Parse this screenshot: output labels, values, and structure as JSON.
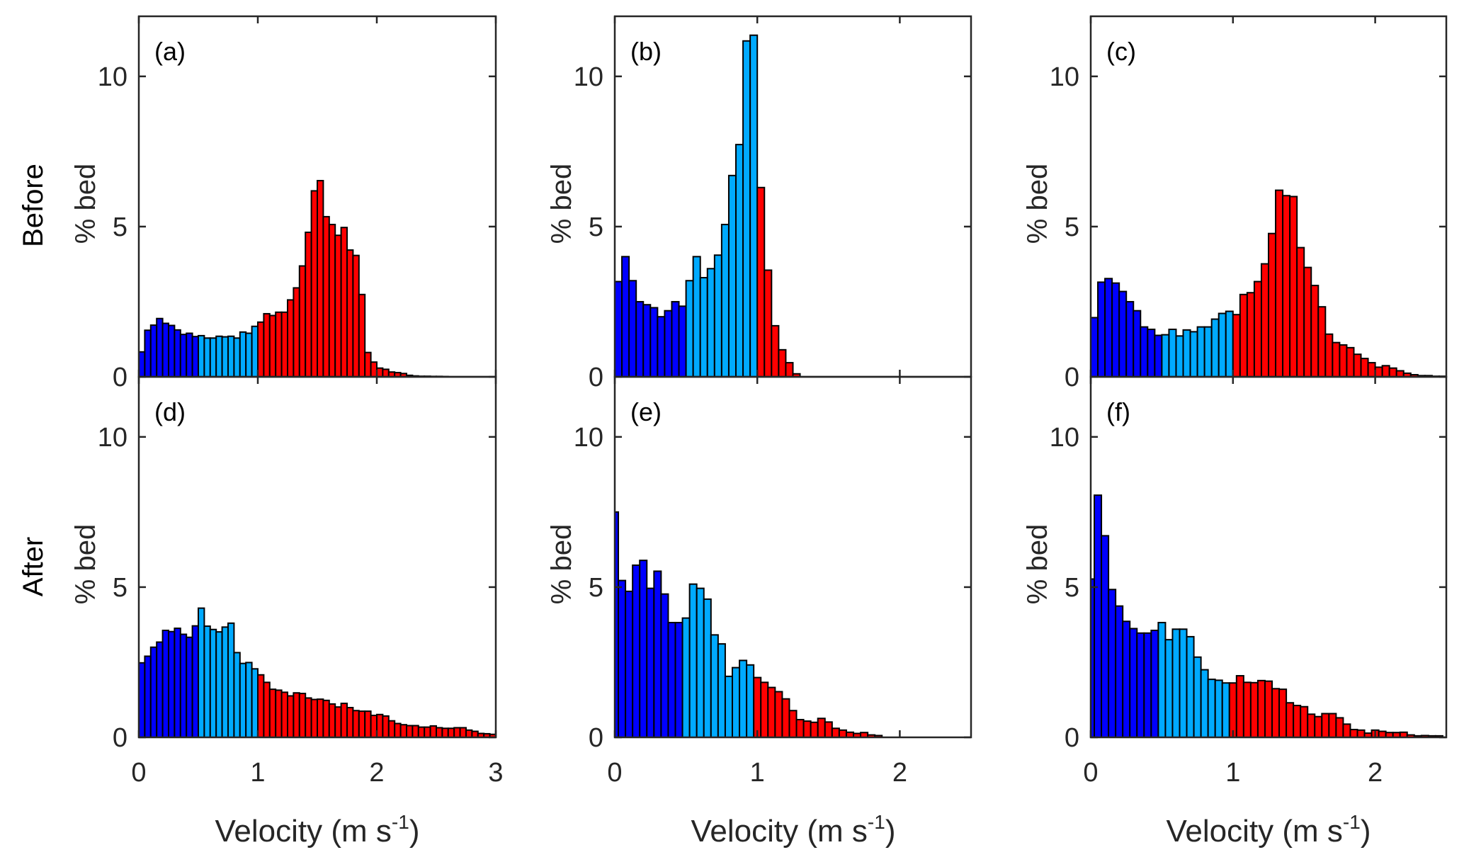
{
  "chart_data": {
    "type": "bar",
    "title": "",
    "row_labels": [
      "Before",
      "After"
    ],
    "class_colors": {
      "slow": "#0000FF",
      "medium": "#00AAFF",
      "fast": "#FF0000"
    },
    "class_bounds": {
      "slow_max": 0.5,
      "medium_max": 1.0
    },
    "panels": [
      {
        "id": "a",
        "label": "(a)",
        "row": "Before",
        "xlabel": "Velocity (m s-1)",
        "ylabel": "% bed",
        "xlim": [
          0,
          3
        ],
        "ylim": [
          0,
          12
        ],
        "xticks": [
          0,
          1,
          2,
          3
        ],
        "yticks": [
          0,
          5,
          10
        ],
        "show_xticklabels": false,
        "bin_width": 0.05,
        "bin_start": 0,
        "values": [
          0.83,
          1.55,
          1.72,
          1.94,
          1.78,
          1.71,
          1.56,
          1.41,
          1.45,
          1.34,
          1.37,
          1.29,
          1.29,
          1.35,
          1.33,
          1.35,
          1.29,
          1.49,
          1.45,
          1.68,
          1.82,
          2.1,
          2.04,
          2.15,
          2.15,
          2.56,
          2.96,
          3.69,
          4.81,
          6.19,
          6.53,
          5.33,
          5.07,
          4.71,
          4.97,
          4.22,
          4.04,
          2.74,
          0.81,
          0.49,
          0.29,
          0.25,
          0.16,
          0.14,
          0.11,
          0.05,
          0.03,
          0.02,
          0.02,
          0.015,
          0.015,
          0.01
        ]
      },
      {
        "id": "b",
        "label": "(b)",
        "row": "Before",
        "xlabel": "Velocity (m s-1)",
        "ylabel": "% bed",
        "xlim": [
          0,
          2.5
        ],
        "ylim": [
          0,
          12
        ],
        "xticks": [
          0,
          1,
          2
        ],
        "yticks": [
          0,
          5,
          10
        ],
        "show_xticklabels": false,
        "bin_width": 0.05,
        "bin_start": 0,
        "values": [
          3.17,
          4.0,
          3.2,
          2.5,
          2.4,
          2.3,
          2.0,
          2.2,
          2.5,
          2.35,
          3.2,
          4.0,
          3.3,
          3.6,
          4.05,
          5.07,
          6.7,
          7.73,
          11.18,
          11.37,
          6.3,
          3.55,
          1.7,
          0.9,
          0.47,
          0.1
        ]
      },
      {
        "id": "c",
        "label": "(c)",
        "row": "Before",
        "xlabel": "Velocity (m s-1)",
        "ylabel": "% bed",
        "xlim": [
          0,
          2.5
        ],
        "ylim": [
          0,
          12
        ],
        "xticks": [
          0,
          1,
          2
        ],
        "yticks": [
          0,
          5,
          10
        ],
        "show_xticklabels": false,
        "bin_width": 0.05,
        "bin_start": 0,
        "values": [
          1.97,
          3.15,
          3.27,
          3.12,
          2.84,
          2.5,
          2.2,
          1.66,
          1.58,
          1.38,
          1.4,
          1.58,
          1.36,
          1.56,
          1.5,
          1.66,
          1.66,
          1.92,
          2.11,
          2.18,
          2.07,
          2.74,
          2.8,
          3.17,
          3.76,
          4.77,
          6.21,
          6.03,
          6.0,
          4.3,
          3.64,
          3.04,
          2.33,
          1.42,
          1.14,
          1.06,
          0.97,
          0.75,
          0.61,
          0.47,
          0.32,
          0.37,
          0.29,
          0.2,
          0.12,
          0.07,
          0.04,
          0.04,
          0.02,
          0.02
        ]
      },
      {
        "id": "d",
        "label": "(d)",
        "row": "After",
        "xlabel": "Velocity (m s-1)",
        "ylabel": "% bed",
        "xlim": [
          0,
          3
        ],
        "ylim": [
          0,
          12
        ],
        "xticks": [
          0,
          1,
          2,
          3
        ],
        "yticks": [
          0,
          5,
          10
        ],
        "show_xticklabels": true,
        "bin_width": 0.05,
        "bin_start": 0,
        "values": [
          2.48,
          2.7,
          3.0,
          3.17,
          3.56,
          3.52,
          3.63,
          3.43,
          3.33,
          3.71,
          4.3,
          3.7,
          3.59,
          3.51,
          3.67,
          3.8,
          2.82,
          2.46,
          2.49,
          2.28,
          2.08,
          1.83,
          1.6,
          1.57,
          1.5,
          1.38,
          1.48,
          1.46,
          1.31,
          1.26,
          1.27,
          1.23,
          1.11,
          1.01,
          1.13,
          0.99,
          0.89,
          0.87,
          0.87,
          0.73,
          0.76,
          0.71,
          0.55,
          0.46,
          0.42,
          0.39,
          0.39,
          0.34,
          0.34,
          0.38,
          0.32,
          0.3,
          0.3,
          0.32,
          0.32,
          0.24,
          0.2,
          0.13,
          0.12,
          0.1
        ]
      },
      {
        "id": "e",
        "label": "(e)",
        "row": "After",
        "xlabel": "Velocity (m s-1)",
        "ylabel": "% bed",
        "xlim": [
          0,
          2.5
        ],
        "ylim": [
          0,
          12
        ],
        "xticks": [
          0,
          1,
          2
        ],
        "yticks": [
          0,
          5,
          10
        ],
        "show_xticklabels": true,
        "bin_width": 0.05,
        "bin_start": -0.025,
        "values": [
          7.5,
          5.22,
          4.86,
          5.73,
          5.89,
          4.96,
          5.53,
          4.77,
          3.82,
          3.82,
          3.97,
          5.1,
          4.96,
          4.6,
          3.41,
          3.11,
          2.03,
          2.32,
          2.56,
          2.41,
          1.99,
          1.83,
          1.66,
          1.52,
          1.28,
          0.89,
          0.59,
          0.54,
          0.5,
          0.63,
          0.51,
          0.3,
          0.24,
          0.17,
          0.13,
          0.16,
          0.08,
          0.06
        ]
      },
      {
        "id": "f",
        "label": "(f)",
        "row": "After",
        "xlabel": "Velocity (m s-1)",
        "ylabel": "% bed",
        "xlim": [
          0,
          2.5
        ],
        "ylim": [
          0,
          12
        ],
        "xticks": [
          0,
          1,
          2
        ],
        "yticks": [
          0,
          5,
          10
        ],
        "show_xticklabels": true,
        "bin_width": 0.05,
        "bin_start": -0.025,
        "values": [
          5.27,
          8.06,
          6.71,
          4.92,
          4.37,
          3.86,
          3.62,
          3.47,
          3.47,
          3.56,
          3.82,
          3.25,
          3.6,
          3.6,
          3.35,
          2.67,
          2.25,
          1.93,
          1.9,
          1.81,
          1.81,
          2.05,
          1.83,
          1.82,
          1.89,
          1.87,
          1.62,
          1.6,
          1.15,
          1.06,
          1.02,
          0.77,
          0.69,
          0.79,
          0.79,
          0.65,
          0.44,
          0.26,
          0.24,
          0.14,
          0.24,
          0.2,
          0.16,
          0.16,
          0.17,
          0.08,
          0.05,
          0.06,
          0.05,
          0.05
        ]
      }
    ]
  },
  "labels": {
    "row_before": "Before",
    "row_after": "After",
    "ylabel": "% bed",
    "xlabel_main": "Velocity (m s",
    "xlabel_sup": "-1",
    "xlabel_close": ")"
  }
}
